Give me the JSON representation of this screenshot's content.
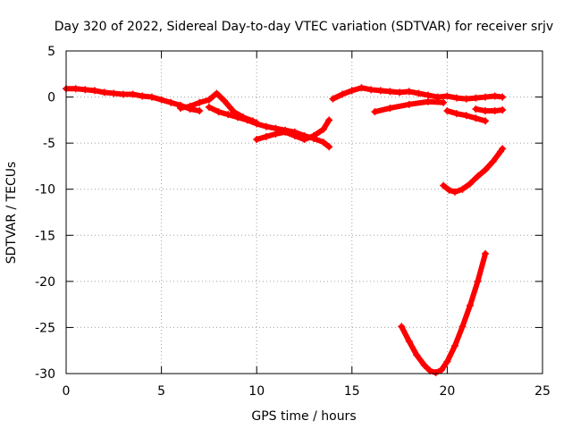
{
  "chart_data": {
    "type": "scatter",
    "title": "Day 320 of 2022, Sidereal Day-to-day VTEC variation (SDTVAR) for receiver srjv",
    "xlabel": "GPS time / hours",
    "ylabel": "SDTVAR / TECUs",
    "xlim": [
      0,
      25
    ],
    "ylim": [
      -30,
      5
    ],
    "xticks": [
      0,
      5,
      10,
      15,
      20,
      25
    ],
    "yticks": [
      -30,
      -25,
      -20,
      -15,
      -10,
      -5,
      0,
      5
    ],
    "xtick_labels": [
      "0",
      "5",
      "10",
      "15",
      "20",
      "25"
    ],
    "ytick_labels": [
      "-30",
      "-25",
      "-20",
      "-15",
      "-10",
      "-5",
      "0",
      "5"
    ],
    "grid": true,
    "marker": "plus",
    "color": "#ff0000",
    "series": [
      {
        "name": "main-arc-early",
        "x": [
          0.0,
          0.5,
          1.0,
          1.5,
          2.0,
          2.5,
          3.0,
          3.5,
          4.0,
          4.5,
          5.0,
          5.5,
          6.0,
          6.5,
          7.0
        ],
        "y": [
          0.9,
          0.9,
          0.8,
          0.7,
          0.5,
          0.4,
          0.3,
          0.3,
          0.1,
          0.0,
          -0.3,
          -0.6,
          -0.9,
          -1.3,
          -1.5
        ]
      },
      {
        "name": "main-arc-bump",
        "x": [
          6.0,
          6.5,
          7.0,
          7.5,
          7.9,
          8.3,
          8.8,
          9.3,
          9.8,
          10.0
        ],
        "y": [
          -1.2,
          -1.0,
          -0.6,
          -0.3,
          0.4,
          -0.4,
          -1.6,
          -2.2,
          -2.6,
          -2.8
        ]
      },
      {
        "name": "main-arc-dip",
        "x": [
          7.5,
          8.0,
          8.5,
          9.0,
          9.5,
          10.0,
          10.5,
          11.0,
          11.5,
          12.0,
          12.5,
          13.0,
          13.5,
          13.8
        ],
        "y": [
          -1.1,
          -1.6,
          -1.9,
          -2.2,
          -2.5,
          -2.9,
          -3.2,
          -3.4,
          -3.6,
          -3.8,
          -4.2,
          -4.5,
          -4.9,
          -5.4
        ]
      },
      {
        "name": "main-arc-low",
        "x": [
          10.0,
          10.5,
          11.0,
          11.5,
          12.0,
          12.5,
          13.0,
          13.5,
          13.8
        ],
        "y": [
          -4.6,
          -4.3,
          -4.0,
          -3.8,
          -4.2,
          -4.6,
          -4.2,
          -3.5,
          -2.5
        ]
      },
      {
        "name": "afternoon-arc",
        "x": [
          14.0,
          14.5,
          15.0,
          15.5,
          16.0,
          16.5,
          17.0,
          17.5,
          18.0,
          18.5,
          19.0,
          19.5,
          20.0,
          20.5,
          21.0,
          21.5,
          22.0,
          22.5,
          22.9
        ],
        "y": [
          -0.2,
          0.3,
          0.7,
          1.0,
          0.8,
          0.7,
          0.6,
          0.5,
          0.6,
          0.4,
          0.2,
          0.0,
          0.1,
          -0.1,
          -0.2,
          -0.1,
          0.0,
          0.1,
          0.0
        ]
      },
      {
        "name": "afternoon-lower",
        "x": [
          16.2,
          17.0,
          18.0,
          19.0,
          19.8
        ],
        "y": [
          -1.6,
          -1.2,
          -0.8,
          -0.5,
          -0.6
        ]
      },
      {
        "name": "late-arc-a",
        "x": [
          20.0,
          20.5,
          21.0,
          21.5,
          22.0
        ],
        "y": [
          -1.5,
          -1.8,
          -2.0,
          -2.3,
          -2.6
        ]
      },
      {
        "name": "late-arc-b",
        "x": [
          21.5,
          22.0,
          22.5,
          22.9
        ],
        "y": [
          -1.3,
          -1.5,
          -1.5,
          -1.4
        ]
      },
      {
        "name": "arc-minus-ten",
        "x": [
          19.8,
          20.1,
          20.4,
          20.8,
          21.2,
          21.6,
          22.0,
          22.4,
          22.8,
          22.9
        ],
        "y": [
          -9.6,
          -10.1,
          -10.3,
          -10.0,
          -9.4,
          -8.6,
          -7.9,
          -7.0,
          -5.9,
          -5.6
        ]
      },
      {
        "name": "arc-minus-thirty",
        "x": [
          17.6,
          18.0,
          18.4,
          18.8,
          19.1,
          19.4,
          19.7,
          20.0,
          20.4,
          20.8,
          21.2,
          21.6,
          22.0
        ],
        "y": [
          -24.9,
          -26.5,
          -28.0,
          -29.1,
          -29.7,
          -29.9,
          -29.6,
          -28.7,
          -27.0,
          -24.9,
          -22.6,
          -20.0,
          -17.0
        ]
      }
    ]
  }
}
